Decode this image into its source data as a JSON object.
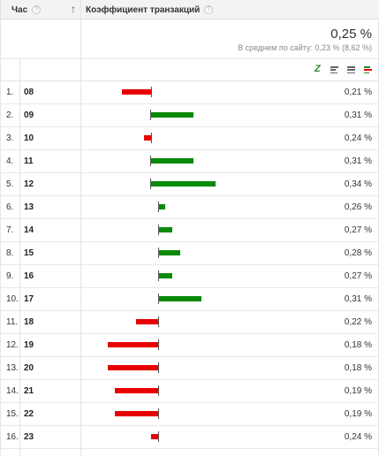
{
  "header": {
    "col_hour": "Час",
    "col_metric": "Коэффициент транзакций",
    "help_glyph": "?",
    "sort_glyph": "↑"
  },
  "summary": {
    "total": "0,25 %",
    "average": "В среднем по сайту: 0,23 % (8,62 %)"
  },
  "toolbar": {
    "icons": [
      "chart-z-icon",
      "bar-chart-icon",
      "list-view-icon",
      "comparison-icon"
    ]
  },
  "chart_data": {
    "type": "bar",
    "baseline_percent": 0.25,
    "categories": [
      "08",
      "09",
      "10",
      "11",
      "12",
      "13",
      "14",
      "15",
      "16",
      "17",
      "18",
      "19",
      "20",
      "21",
      "22",
      "23"
    ],
    "values": [
      0.21,
      0.31,
      0.24,
      0.31,
      0.34,
      0.26,
      0.27,
      0.28,
      0.27,
      0.31,
      0.22,
      0.18,
      0.18,
      0.19,
      0.19,
      0.24
    ],
    "positive_color": "#0a8a0a",
    "negative_color": "#e80000"
  },
  "rows": [
    {
      "index": "1.",
      "hour": "08",
      "value": "0,21 %"
    },
    {
      "index": "2.",
      "hour": "09",
      "value": "0,31 %"
    },
    {
      "index": "3.",
      "hour": "10",
      "value": "0,24 %"
    },
    {
      "index": "4.",
      "hour": "11",
      "value": "0,31 %"
    },
    {
      "index": "5.",
      "hour": "12",
      "value": "0,34 %"
    },
    {
      "index": "6.",
      "hour": "13",
      "value": "0,26 %"
    },
    {
      "index": "7.",
      "hour": "14",
      "value": "0,27 %"
    },
    {
      "index": "8.",
      "hour": "15",
      "value": "0,28 %"
    },
    {
      "index": "9.",
      "hour": "16",
      "value": "0,27 %"
    },
    {
      "index": "10.",
      "hour": "17",
      "value": "0,31 %"
    },
    {
      "index": "11.",
      "hour": "18",
      "value": "0,22 %"
    },
    {
      "index": "12.",
      "hour": "19",
      "value": "0,18 %"
    },
    {
      "index": "13.",
      "hour": "20",
      "value": "0,18 %"
    },
    {
      "index": "14.",
      "hour": "21",
      "value": "0,19 %"
    },
    {
      "index": "15.",
      "hour": "22",
      "value": "0,19 %"
    },
    {
      "index": "16.",
      "hour": "23",
      "value": "0,24 %"
    }
  ]
}
